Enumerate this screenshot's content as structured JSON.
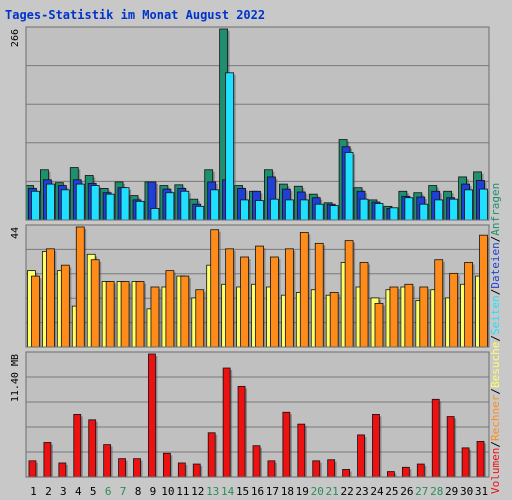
{
  "colors": {
    "background": "#c8c8c8",
    "plot_background": "#c0c0c0",
    "frame_dark": "#6b6b6b",
    "frame_light": "#f2f2f2",
    "grid": "#7a7a7a",
    "weekend_label": "#2e8b57",
    "weekday_label": "#000000",
    "title": "#0033cc",
    "anfragen": "#1f8f6f",
    "dateien": "#1f3fd6",
    "seiten": "#1fe1ff",
    "besuche": "#ffff66",
    "rechner": "#ff8c1a",
    "volumen": "#ee1111"
  },
  "chart_data": {
    "type": "bar",
    "title": "Tages-Statistik im Monat August 2022",
    "categories": [
      "1",
      "2",
      "3",
      "4",
      "5",
      "6",
      "7",
      "8",
      "9",
      "10",
      "11",
      "12",
      "13",
      "14",
      "15",
      "16",
      "17",
      "18",
      "19",
      "20",
      "21",
      "22",
      "23",
      "24",
      "25",
      "26",
      "27",
      "28",
      "29",
      "30",
      "31"
    ],
    "weekend_categories": [
      "6",
      "7",
      "13",
      "14",
      "20",
      "21",
      "27",
      "28"
    ],
    "panels": [
      {
        "id": "requests",
        "ymax": 266,
        "tick_label": "266",
        "gridlines": 5,
        "series": [
          {
            "name": "Anfragen",
            "values": [
              48,
              70,
              52,
              73,
              62,
              44,
              53,
              34,
              53,
              48,
              49,
              29,
              70,
              266,
              48,
              40,
              70,
              50,
              47,
              36,
              24,
              112,
              45,
              28,
              19,
              40,
              38,
              48,
              40,
              60,
              67
            ]
          },
          {
            "name": "Dateien",
            "values": [
              44,
              56,
              48,
              56,
              51,
              38,
              45,
              28,
              53,
              43,
              44,
              22,
              53,
              56,
              44,
              40,
              60,
              43,
              39,
              31,
              22,
              102,
              40,
              25,
              16,
              33,
              32,
              40,
              31,
              50,
              55
            ]
          },
          {
            "name": "Seiten",
            "values": [
              40,
              50,
              42,
              50,
              48,
              36,
              45,
              26,
              16,
              38,
              40,
              19,
              42,
              205,
              28,
              27,
              29,
              28,
              28,
              22,
              20,
              94,
              29,
              23,
              17,
              31,
              22,
              28,
              29,
              42,
              43
            ]
          }
        ]
      },
      {
        "id": "visits",
        "ymax": 44,
        "tick_label": "44",
        "gridlines": 5,
        "series": [
          {
            "name": "Besuche",
            "values": [
              28,
              35,
              28,
              15,
              34,
              24,
              24,
              24,
              14,
              22,
              26,
              18,
              30,
              23,
              22,
              23,
              22,
              19,
              20,
              21,
              19,
              31,
              22,
              18,
              21,
              22,
              17,
              21,
              18,
              23,
              26
            ]
          },
          {
            "name": "Rechner",
            "values": [
              26,
              36,
              30,
              44,
              32,
              24,
              24,
              24,
              22,
              28,
              26,
              21,
              43,
              36,
              33,
              37,
              33,
              36,
              42,
              38,
              20,
              39,
              31,
              16,
              22,
              23,
              22,
              32,
              27,
              31,
              41
            ]
          }
        ]
      },
      {
        "id": "volume",
        "ymax": 11.4,
        "tick_label": "11.40 MB",
        "gridlines": 5,
        "series": [
          {
            "name": "Volumen",
            "values": [
              1.5,
              3.2,
              1.3,
              5.8,
              5.3,
              3.0,
              1.7,
              1.7,
              11.4,
              2.2,
              1.3,
              1.2,
              4.1,
              10.1,
              8.4,
              2.9,
              1.5,
              6.0,
              4.9,
              1.5,
              1.6,
              0.7,
              3.9,
              5.8,
              0.5,
              0.9,
              1.2,
              7.2,
              5.6,
              2.7,
              3.3
            ]
          }
        ]
      }
    ],
    "legend_right": [
      {
        "label": "Anfragen",
        "color_key": "anfragen"
      },
      {
        "label": "/",
        "color_key": "weekday_label"
      },
      {
        "label": "Dateien",
        "color_key": "dateien"
      },
      {
        "label": "/",
        "color_key": "weekday_label"
      },
      {
        "label": "Seiten",
        "color_key": "seiten"
      },
      {
        "label": "/",
        "color_key": "weekday_label"
      },
      {
        "label": "Besuche",
        "color_key": "besuche"
      },
      {
        "label": "/",
        "color_key": "weekday_label"
      },
      {
        "label": "Rechner",
        "color_key": "rechner"
      },
      {
        "label": "/",
        "color_key": "weekday_label"
      },
      {
        "label": "Volumen",
        "color_key": "volumen"
      }
    ]
  }
}
